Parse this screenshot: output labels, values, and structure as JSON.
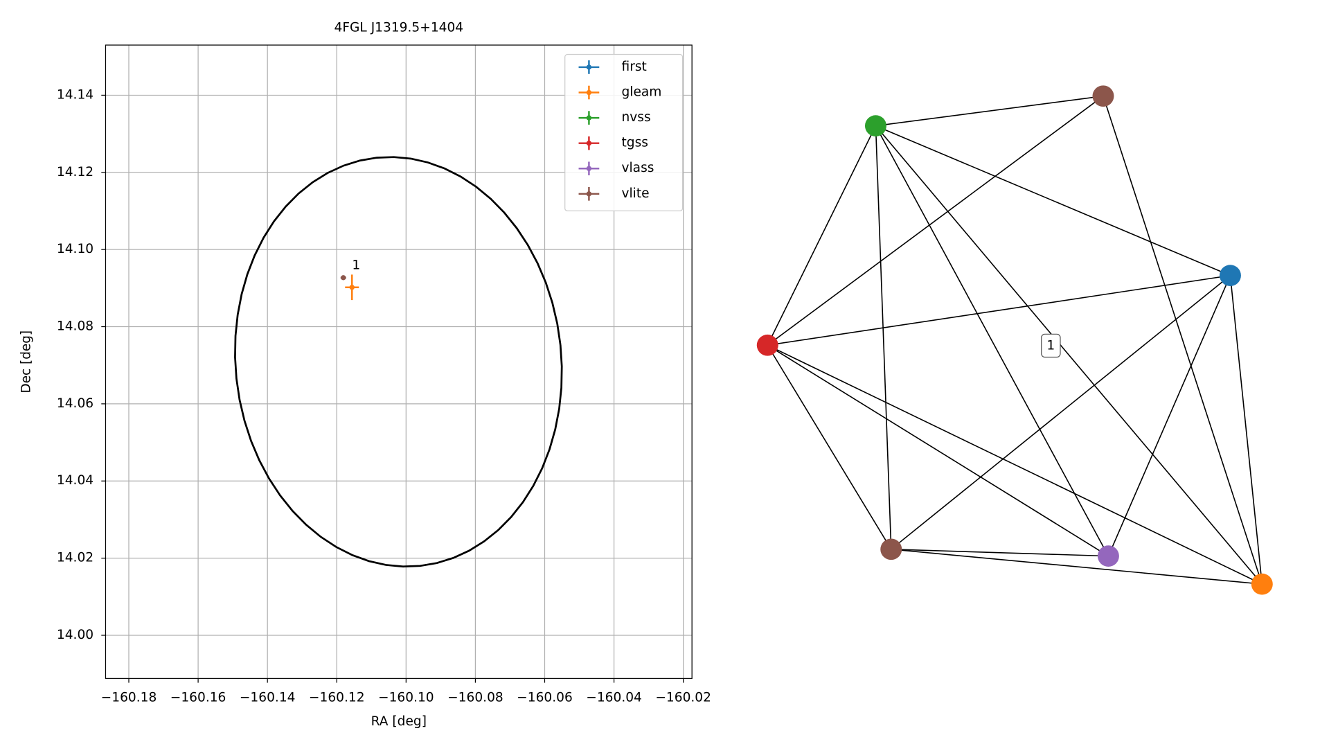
{
  "chart_data": [
    {
      "type": "scatter",
      "title": "4FGL J1319.5+1404",
      "x_label": "RA [deg]",
      "y_label": "Dec [deg]",
      "xlim": [
        -160.1867,
        -160.0175
      ],
      "ylim": [
        13.9888,
        14.153
      ],
      "xticks": [
        {
          "value": -160.18,
          "label": "−160.18"
        },
        {
          "value": -160.16,
          "label": "−160.16"
        },
        {
          "value": -160.14,
          "label": "−160.14"
        },
        {
          "value": -160.12,
          "label": "−160.12"
        },
        {
          "value": -160.1,
          "label": "−160.10"
        },
        {
          "value": -160.08,
          "label": "−160.08"
        },
        {
          "value": -160.06,
          "label": "−160.06"
        },
        {
          "value": -160.04,
          "label": "−160.04"
        },
        {
          "value": -160.02,
          "label": "−160.02"
        }
      ],
      "yticks": [
        {
          "value": 14,
          "label": "14.00"
        },
        14.02,
        14.04,
        14.06,
        14.08,
        {
          "value": 14.1,
          "label": "14.10"
        },
        14.12,
        14.14
      ],
      "grid": true,
      "legend": "upper right",
      "series": [
        {
          "name": "first",
          "color": "#1f77b4",
          "x": [],
          "values": [],
          "xerr": [],
          "yerr": []
        },
        {
          "name": "gleam",
          "color": "#ff7f0e",
          "x": [
            -160.1156
          ],
          "values": [
            14.0902
          ],
          "xerr": [
            0.002
          ],
          "yerr": [
            0.0033
          ]
        },
        {
          "name": "nvss",
          "color": "#2ca02c",
          "x": [],
          "values": [],
          "xerr": [],
          "yerr": []
        },
        {
          "name": "tgss",
          "color": "#d62728",
          "x": [],
          "values": [],
          "xerr": [],
          "yerr": []
        },
        {
          "name": "vlass",
          "color": "#9467bd",
          "x": [],
          "values": [],
          "xerr": [],
          "yerr": []
        },
        {
          "name": "vlite",
          "color": "#8c564b",
          "x": [
            -160.1181
          ],
          "values": [
            14.0927
          ],
          "xerr": [
            0.0008
          ],
          "yerr": [
            0.0005
          ]
        }
      ],
      "ellipse": {
        "ra": -160.1022,
        "dec": 14.0709,
        "ra_radius": 0.047,
        "dec_radius": 0.0532,
        "angle": -6
      },
      "annotations": [
        {
          "text": "1",
          "x": -160.1144,
          "y": 14.0958
        }
      ]
    },
    {
      "type": "network",
      "label": "1",
      "nodes": [
        {
          "color": "#8c564b"
        },
        {
          "color": "#2ca02c"
        },
        {
          "color": "#1f77b4"
        },
        {
          "color": "#d62728"
        },
        {
          "color": "#8c564b"
        },
        {
          "color": "#9467bd"
        },
        {
          "color": "#ff7f0e"
        }
      ],
      "edges": [
        [
          1,
          0
        ],
        [
          1,
          2
        ],
        [
          1,
          3
        ],
        [
          1,
          4
        ],
        [
          1,
          5
        ],
        [
          1,
          6
        ],
        [
          0,
          3
        ],
        [
          0,
          6
        ],
        [
          2,
          3
        ],
        [
          2,
          4
        ],
        [
          2,
          5
        ],
        [
          2,
          6
        ],
        [
          3,
          4
        ],
        [
          3,
          5
        ],
        [
          3,
          6
        ],
        [
          4,
          5
        ],
        [
          4,
          6
        ]
      ]
    }
  ]
}
